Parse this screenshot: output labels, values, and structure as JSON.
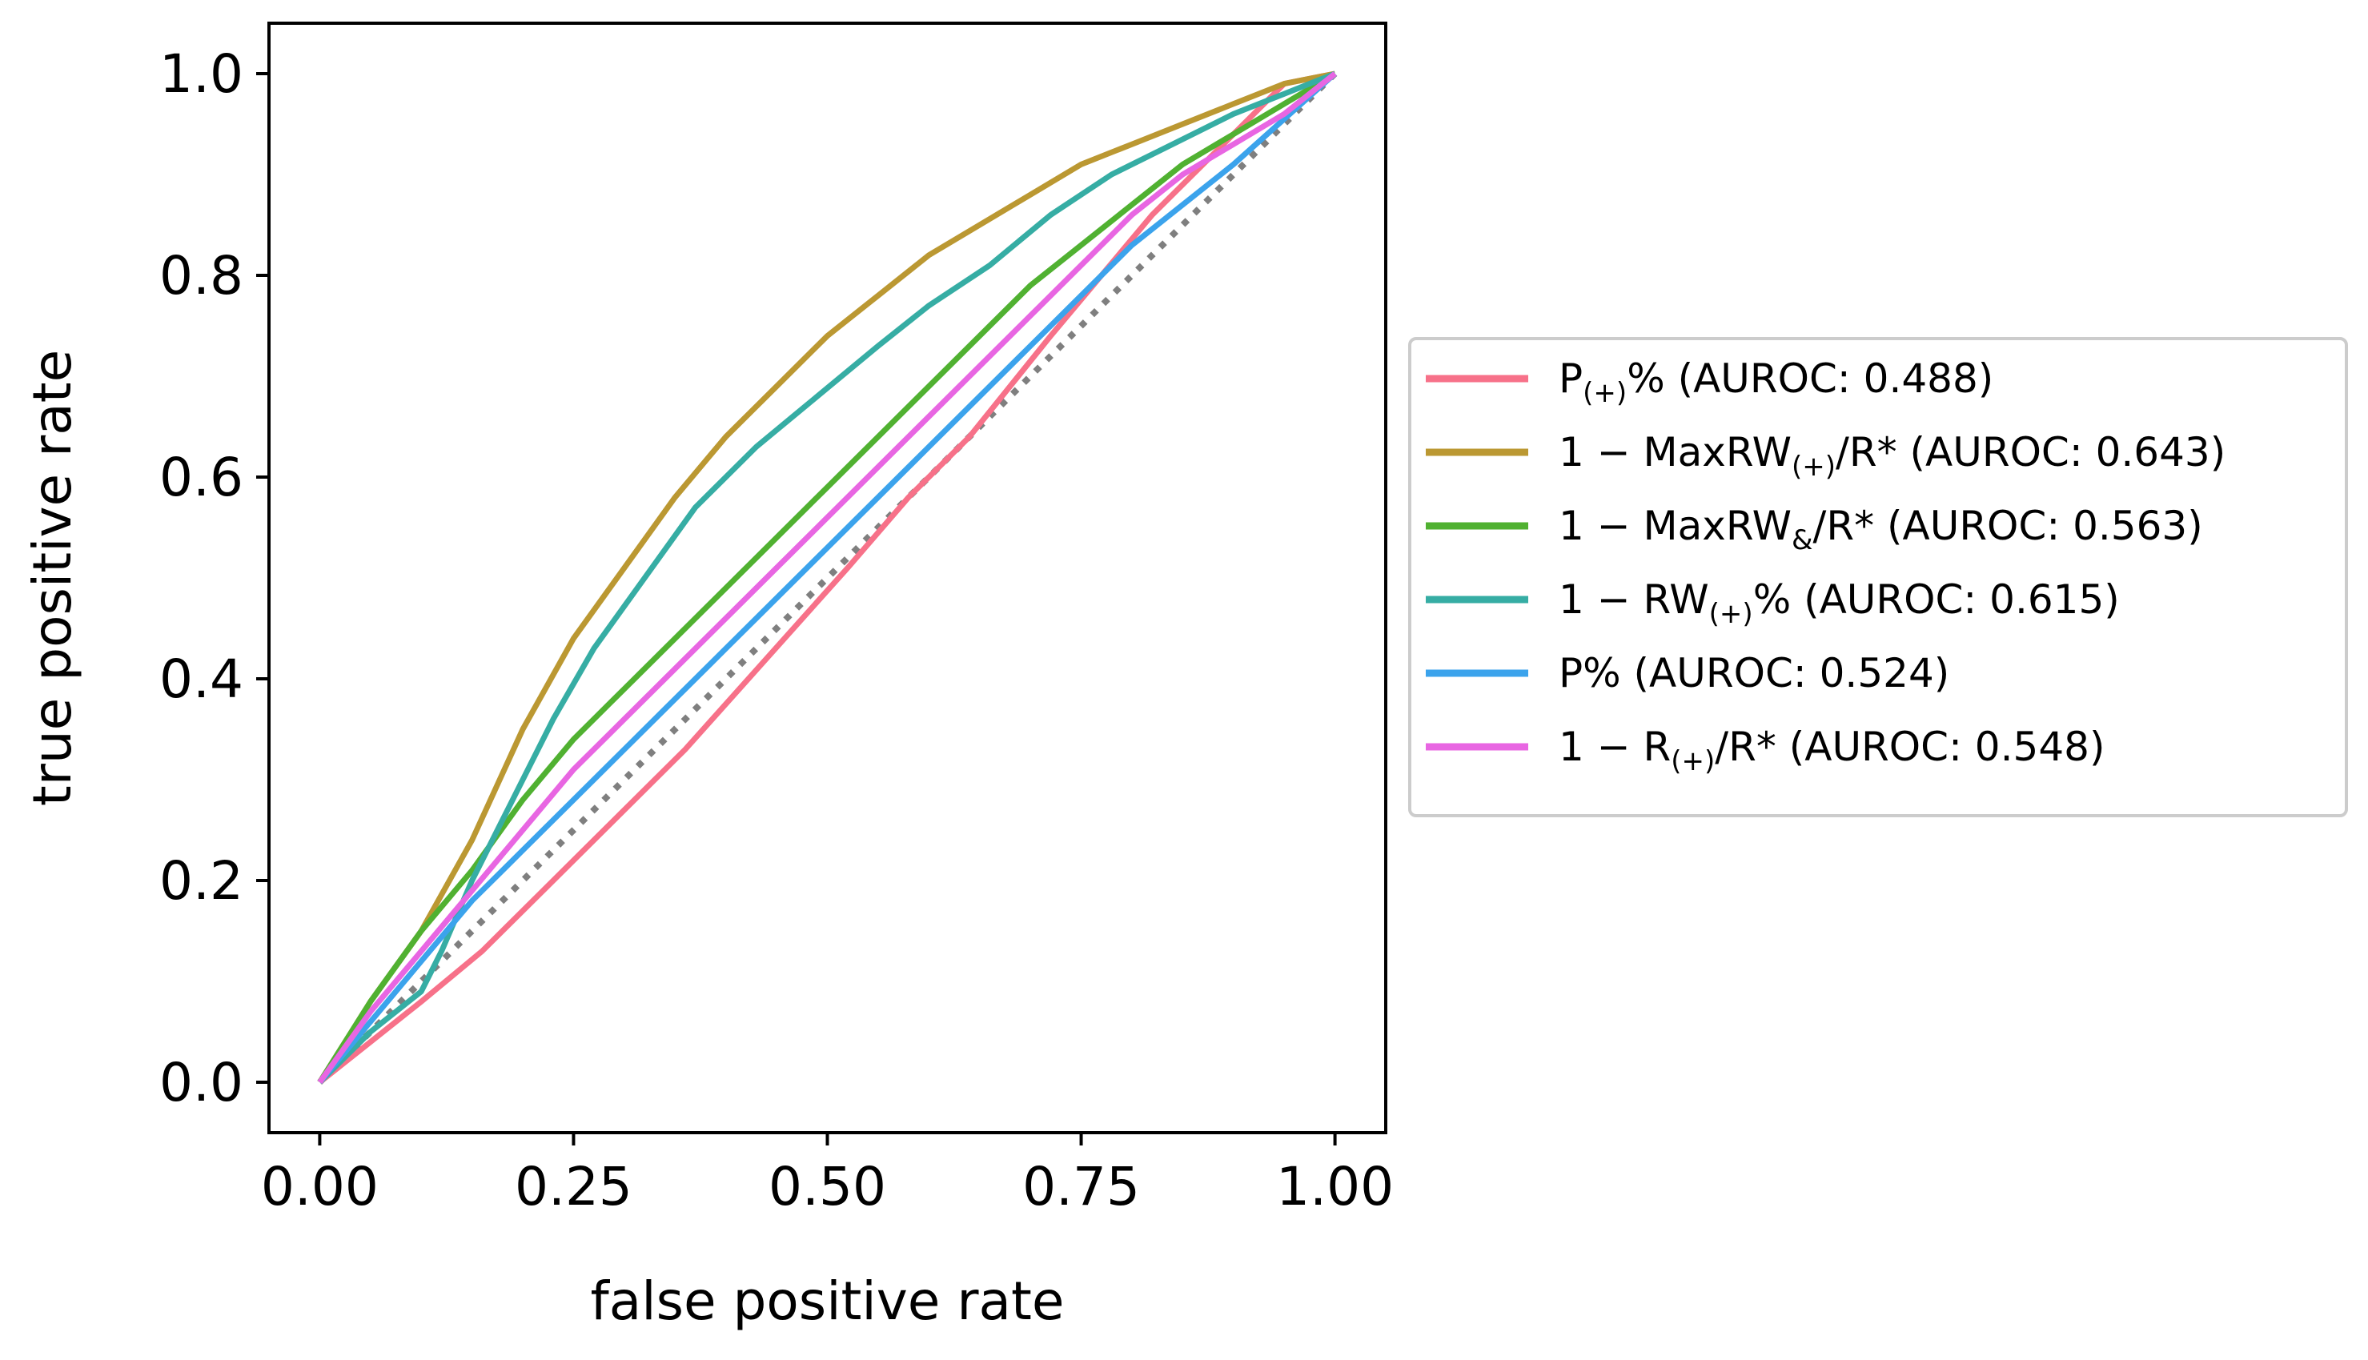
{
  "chart_data": {
    "type": "line",
    "title": "",
    "xlabel": "false positive rate",
    "ylabel": "true positive rate",
    "xlim": [
      -0.05,
      1.05
    ],
    "ylim": [
      -0.05,
      1.05
    ],
    "xticks": [
      0.0,
      0.25,
      0.5,
      0.75,
      1.0
    ],
    "xtick_labels": [
      "0.00",
      "0.25",
      "0.50",
      "0.75",
      "1.00"
    ],
    "yticks": [
      0.0,
      0.2,
      0.4,
      0.6,
      0.8,
      1.0
    ],
    "ytick_labels": [
      "0.0",
      "0.2",
      "0.4",
      "0.6",
      "0.8",
      "1.0"
    ],
    "grid": false,
    "legend_position": "outside-right",
    "diagonal": {
      "x": [
        0,
        1
      ],
      "y": [
        0,
        1
      ],
      "color": "#7f7f7f",
      "style": "dotted"
    },
    "series": [
      {
        "name": "P(+)% (AUROC: 0.488)",
        "name_base": "P",
        "name_sub": "(+)",
        "name_rest": "% (AUROC: 0.488)",
        "color": "#f77189",
        "x": [
          0,
          0.05,
          0.1,
          0.16,
          0.22,
          0.28,
          0.36,
          0.44,
          0.52,
          0.58,
          0.64,
          0.68,
          0.72,
          0.77,
          0.82,
          0.87,
          0.92,
          0.95,
          1.0
        ],
        "y": [
          0,
          0.04,
          0.08,
          0.13,
          0.19,
          0.25,
          0.33,
          0.42,
          0.51,
          0.58,
          0.64,
          0.69,
          0.74,
          0.8,
          0.86,
          0.91,
          0.96,
          0.99,
          1.0
        ]
      },
      {
        "name": "1 − MaxRW(+)/R* (AUROC: 0.643)",
        "name_base": "1 − MaxRW",
        "name_sub": "(+)",
        "name_rest": "/R* (AUROC: 0.643)",
        "color": "#bb9832",
        "x": [
          0,
          0.05,
          0.1,
          0.15,
          0.2,
          0.25,
          0.3,
          0.35,
          0.4,
          0.45,
          0.5,
          0.55,
          0.6,
          0.65,
          0.7,
          0.75,
          0.8,
          0.85,
          0.9,
          0.95,
          1.0
        ],
        "y": [
          0,
          0.08,
          0.15,
          0.24,
          0.35,
          0.44,
          0.51,
          0.58,
          0.64,
          0.69,
          0.74,
          0.78,
          0.82,
          0.85,
          0.88,
          0.91,
          0.93,
          0.95,
          0.97,
          0.99,
          1.0
        ]
      },
      {
        "name": "1 − MaxRW&/R* (AUROC: 0.563)",
        "name_base": "1 − MaxRW",
        "name_sub": "&",
        "name_rest": "/R* (AUROC: 0.563)",
        "color": "#50b131",
        "x": [
          0,
          0.05,
          0.1,
          0.15,
          0.2,
          0.25,
          0.3,
          0.35,
          0.4,
          0.45,
          0.5,
          0.55,
          0.6,
          0.65,
          0.7,
          0.75,
          0.8,
          0.85,
          0.9,
          0.95,
          1.0
        ],
        "y": [
          0,
          0.08,
          0.15,
          0.21,
          0.28,
          0.34,
          0.39,
          0.44,
          0.49,
          0.54,
          0.59,
          0.64,
          0.69,
          0.74,
          0.79,
          0.83,
          0.87,
          0.91,
          0.94,
          0.97,
          1.0
        ]
      },
      {
        "name": "1 − RW(+)% (AUROC: 0.615)",
        "name_base": "1 − RW",
        "name_sub": "(+)",
        "name_rest": "% (AUROC: 0.615)",
        "color": "#36ada4",
        "x": [
          0,
          0.05,
          0.1,
          0.12,
          0.15,
          0.19,
          0.23,
          0.27,
          0.32,
          0.37,
          0.43,
          0.49,
          0.55,
          0.6,
          0.66,
          0.72,
          0.78,
          0.84,
          0.9,
          0.95,
          1.0
        ],
        "y": [
          0,
          0.05,
          0.09,
          0.13,
          0.2,
          0.28,
          0.36,
          0.43,
          0.5,
          0.57,
          0.63,
          0.68,
          0.73,
          0.77,
          0.81,
          0.86,
          0.9,
          0.93,
          0.96,
          0.98,
          1.0
        ]
      },
      {
        "name": "P% (AUROC: 0.524)",
        "name_base": "P% (AUROC: 0.524)",
        "name_sub": "",
        "name_rest": "",
        "color": "#3ba3ec",
        "x": [
          0,
          0.05,
          0.1,
          0.15,
          0.2,
          0.3,
          0.4,
          0.5,
          0.6,
          0.7,
          0.8,
          0.9,
          1.0
        ],
        "y": [
          0,
          0.06,
          0.12,
          0.18,
          0.23,
          0.33,
          0.43,
          0.53,
          0.63,
          0.73,
          0.83,
          0.91,
          1.0
        ]
      },
      {
        "name": "1 − R*(+)/R* (AUROC: 0.548)",
        "name_base": "1 − R",
        "name_sub": "(+)",
        "name_rest": "/R* (AUROC: 0.548)",
        "color": "#e866e2",
        "x": [
          0,
          0.05,
          0.1,
          0.15,
          0.2,
          0.25,
          0.3,
          0.35,
          0.4,
          0.45,
          0.5,
          0.55,
          0.6,
          0.65,
          0.7,
          0.75,
          0.8,
          0.85,
          0.9,
          0.95,
          1.0
        ],
        "y": [
          0,
          0.07,
          0.13,
          0.19,
          0.25,
          0.31,
          0.36,
          0.41,
          0.46,
          0.51,
          0.56,
          0.61,
          0.66,
          0.71,
          0.76,
          0.81,
          0.86,
          0.9,
          0.93,
          0.96,
          1.0
        ]
      }
    ]
  }
}
